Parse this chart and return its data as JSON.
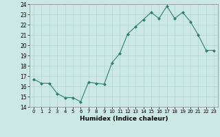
{
  "x": [
    0,
    1,
    2,
    3,
    4,
    5,
    6,
    7,
    8,
    9,
    10,
    11,
    12,
    13,
    14,
    15,
    16,
    17,
    18,
    19,
    20,
    21,
    22,
    23
  ],
  "y": [
    16.7,
    16.3,
    16.3,
    15.3,
    14.9,
    14.9,
    14.5,
    16.4,
    16.3,
    16.2,
    18.3,
    19.2,
    21.1,
    21.8,
    22.5,
    23.2,
    22.6,
    23.8,
    22.6,
    23.2,
    22.3,
    21.0,
    19.5,
    19.5
  ],
  "line_color": "#2e7d6e",
  "marker": "D",
  "marker_size": 2,
  "bg_color": "#cce8e4",
  "grid_color": "#b0d4cc",
  "xlabel": "Humidex (Indice chaleur)",
  "ylim": [
    14,
    24
  ],
  "xlim": [
    -0.5,
    23.5
  ],
  "yticks": [
    14,
    15,
    16,
    17,
    18,
    19,
    20,
    21,
    22,
    23,
    24
  ],
  "xticks": [
    0,
    1,
    2,
    3,
    4,
    5,
    6,
    7,
    8,
    9,
    10,
    11,
    12,
    13,
    14,
    15,
    16,
    17,
    18,
    19,
    20,
    21,
    22,
    23
  ]
}
